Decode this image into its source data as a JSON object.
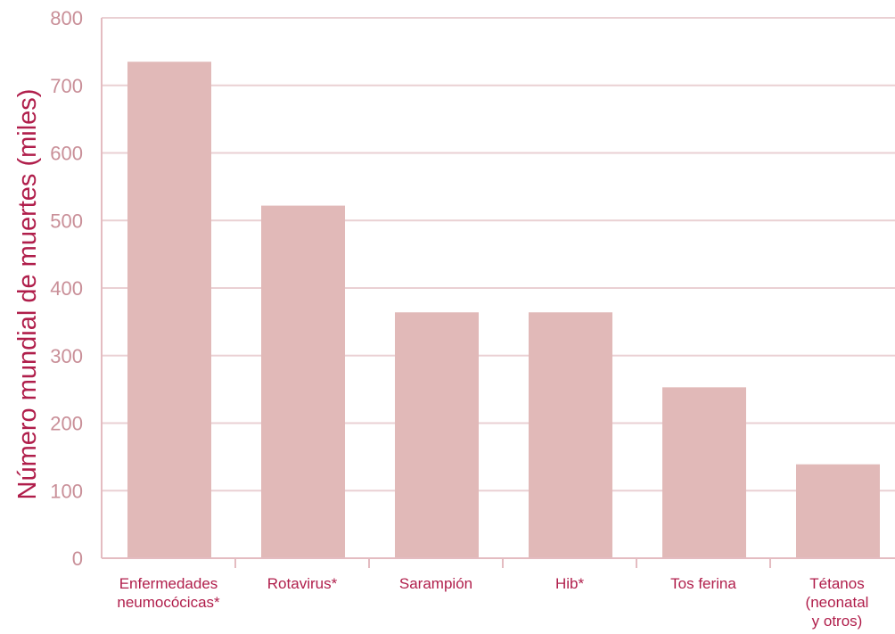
{
  "chart_data": {
    "type": "bar",
    "title": "",
    "xlabel": "",
    "ylabel": "Número mundial de muertes (miles)",
    "ylim": [
      0,
      800
    ],
    "yticks": [
      0,
      100,
      200,
      300,
      400,
      500,
      600,
      700,
      800
    ],
    "grid": true,
    "categories": [
      [
        "Enfermedades",
        "neumocócicas*"
      ],
      [
        "Rotavirus*"
      ],
      [
        "Sarampión"
      ],
      [
        "Hib*"
      ],
      [
        "Tos ferina"
      ],
      [
        "Tétanos",
        "(neonatal",
        "y otros)"
      ]
    ],
    "values": [
      735,
      522,
      364,
      364,
      253,
      139
    ],
    "colors": {
      "bar": "#e1b9b8",
      "grid": "#ead0d3",
      "axis": "#e4bcc1",
      "ytick": "#c98f98",
      "text": "#b01e4b"
    }
  }
}
